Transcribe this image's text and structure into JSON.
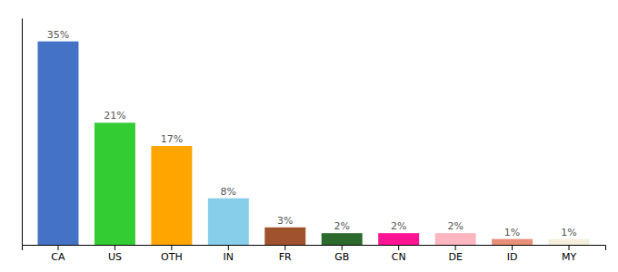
{
  "chart_data": {
    "type": "bar",
    "categories": [
      "CA",
      "US",
      "OTH",
      "IN",
      "FR",
      "GB",
      "CN",
      "DE",
      "ID",
      "MY"
    ],
    "values": [
      35,
      21,
      17,
      8,
      3,
      2,
      2,
      2,
      1,
      1
    ],
    "value_labels": [
      "35%",
      "21%",
      "17%",
      "8%",
      "3%",
      "2%",
      "2%",
      "2%",
      "1%",
      "1%"
    ],
    "colors": [
      "#4472C4",
      "#33CC33",
      "#FFA500",
      "#87CEEB",
      "#A0522D",
      "#2D6A2D",
      "#FF1493",
      "#FFB6C1",
      "#E8907A",
      "#F5F0DC"
    ],
    "ylim": [
      0,
      39
    ],
    "data_labels": true,
    "tick_labels": "x"
  }
}
